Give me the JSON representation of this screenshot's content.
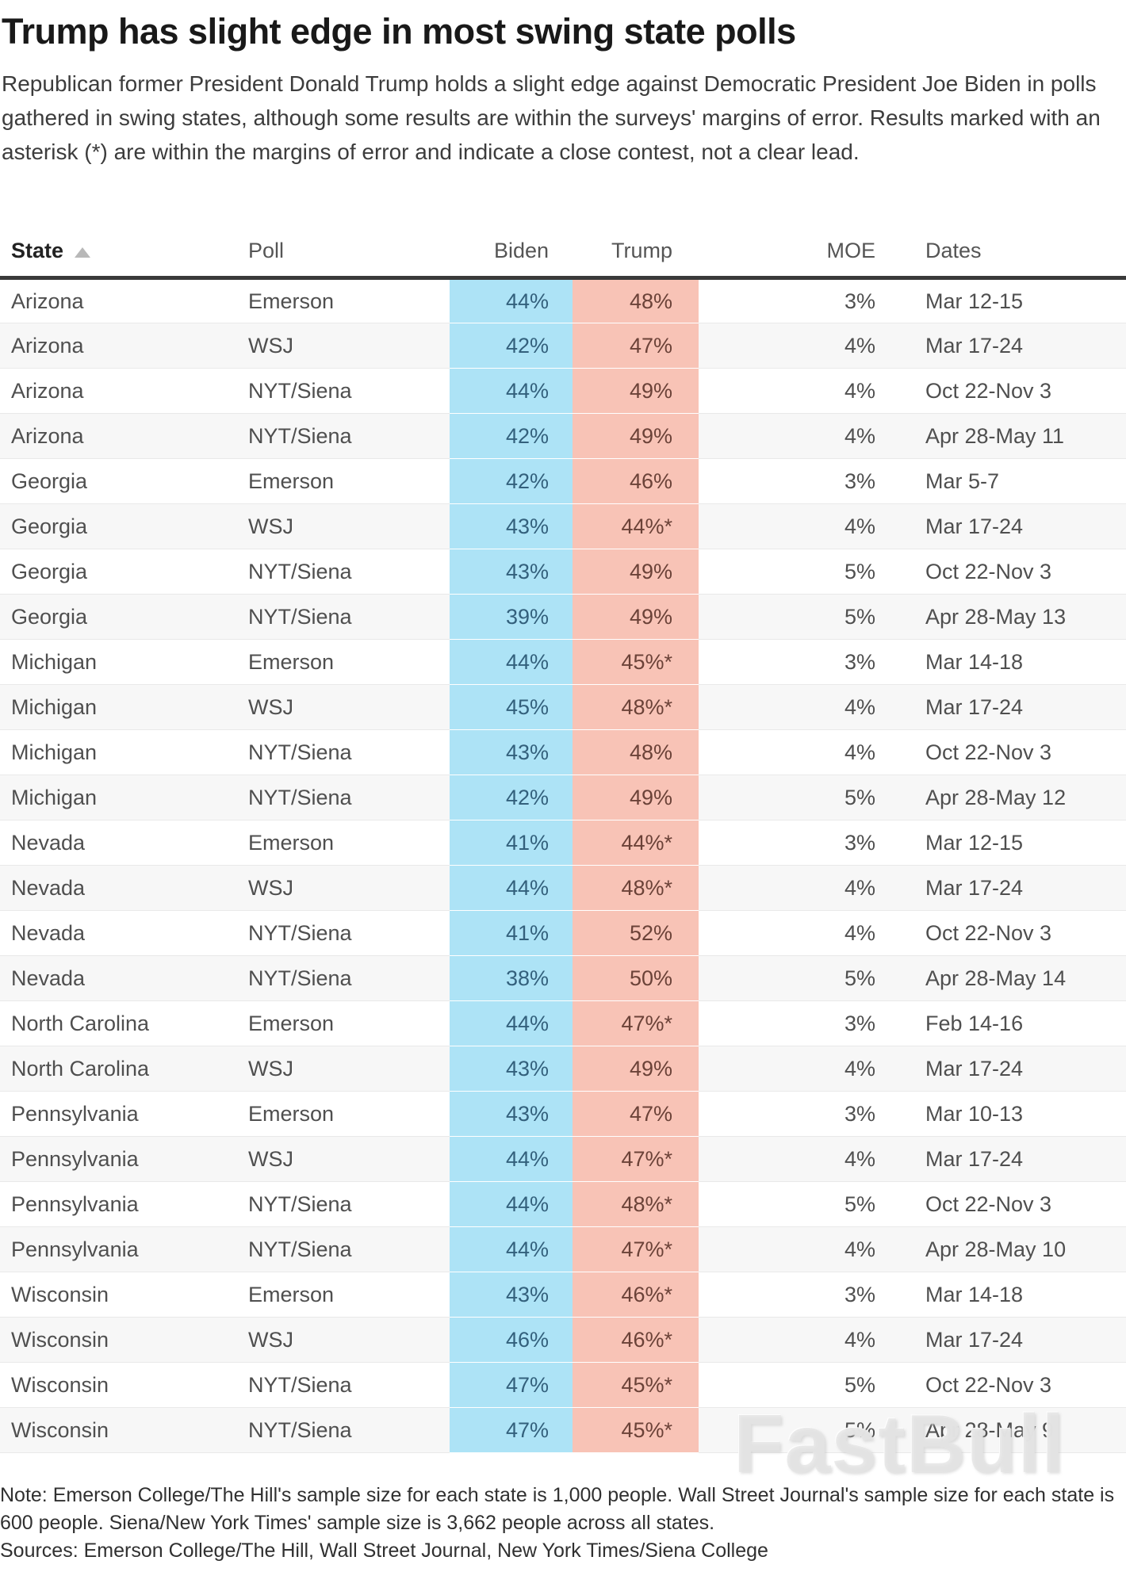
{
  "header": {
    "title": "Trump has slight edge in most swing state polls",
    "subtitle": "Republican former President Donald Trump holds a slight edge against Democratic President Joe Biden in polls gathered in swing states, although some results are within the surveys' margins of error. Results marked with an asterisk (*) are within the margins of error and indicate a close contest, not a clear lead."
  },
  "table": {
    "columns": [
      "State",
      "Poll",
      "Biden",
      "Trump",
      "MOE",
      "Dates"
    ],
    "sort": {
      "column": "State",
      "direction": "ascending",
      "icon": "sort-ascending-triangle"
    },
    "rows": [
      [
        "Arizona",
        "Emerson",
        "44%",
        "48%",
        "3%",
        "Mar 12-15"
      ],
      [
        "Arizona",
        "WSJ",
        "42%",
        "47%",
        "4%",
        "Mar 17-24"
      ],
      [
        "Arizona",
        "NYT/Siena",
        "44%",
        "49%",
        "4%",
        "Oct 22-Nov 3"
      ],
      [
        "Arizona",
        "NYT/Siena",
        "42%",
        "49%",
        "4%",
        "Apr 28-May 11"
      ],
      [
        "Georgia",
        "Emerson",
        "42%",
        "46%",
        "3%",
        "Mar 5-7"
      ],
      [
        "Georgia",
        "WSJ",
        "43%",
        "44%*",
        "4%",
        "Mar 17-24"
      ],
      [
        "Georgia",
        "NYT/Siena",
        "43%",
        "49%",
        "5%",
        "Oct 22-Nov 3"
      ],
      [
        "Georgia",
        "NYT/Siena",
        "39%",
        "49%",
        "5%",
        "Apr 28-May 13"
      ],
      [
        "Michigan",
        "Emerson",
        "44%",
        "45%*",
        "3%",
        "Mar 14-18"
      ],
      [
        "Michigan",
        "WSJ",
        "45%",
        "48%*",
        "4%",
        "Mar 17-24"
      ],
      [
        "Michigan",
        "NYT/Siena",
        "43%",
        "48%",
        "4%",
        "Oct 22-Nov 3"
      ],
      [
        "Michigan",
        "NYT/Siena",
        "42%",
        "49%",
        "5%",
        "Apr 28-May 12"
      ],
      [
        "Nevada",
        "Emerson",
        "41%",
        "44%*",
        "3%",
        "Mar 12-15"
      ],
      [
        "Nevada",
        "WSJ",
        "44%",
        "48%*",
        "4%",
        "Mar 17-24"
      ],
      [
        "Nevada",
        "NYT/Siena",
        "41%",
        "52%",
        "4%",
        "Oct 22-Nov 3"
      ],
      [
        "Nevada",
        "NYT/Siena",
        "38%",
        "50%",
        "5%",
        "Apr 28-May 14"
      ],
      [
        "North Carolina",
        "Emerson",
        "44%",
        "47%*",
        "3%",
        "Feb 14-16"
      ],
      [
        "North Carolina",
        "WSJ",
        "43%",
        "49%",
        "4%",
        "Mar 17-24"
      ],
      [
        "Pennsylvania",
        "Emerson",
        "43%",
        "47%",
        "3%",
        "Mar 10-13"
      ],
      [
        "Pennsylvania",
        "WSJ",
        "44%",
        "47%*",
        "4%",
        "Mar 17-24"
      ],
      [
        "Pennsylvania",
        "NYT/Siena",
        "44%",
        "48%*",
        "5%",
        "Oct 22-Nov 3"
      ],
      [
        "Pennsylvania",
        "NYT/Siena",
        "44%",
        "47%*",
        "4%",
        "Apr 28-May 10"
      ],
      [
        "Wisconsin",
        "Emerson",
        "43%",
        "46%*",
        "3%",
        "Mar 14-18"
      ],
      [
        "Wisconsin",
        "WSJ",
        "46%",
        "46%*",
        "4%",
        "Mar 17-24"
      ],
      [
        "Wisconsin",
        "NYT/Siena",
        "47%",
        "45%*",
        "5%",
        "Oct 22-Nov 3"
      ],
      [
        "Wisconsin",
        "NYT/Siena",
        "47%",
        "45%*",
        "5%",
        "Apr 28-May 9"
      ]
    ]
  },
  "colors": {
    "biden_band": "#ade3f6",
    "trump_band": "#f8c3b6",
    "biden_text": "#33607c",
    "trump_text": "#6b4238"
  },
  "watermark": "FastBull",
  "footer": {
    "note": "Note: Emerson College/The Hill's sample size for each state is 1,000 people. Wall Street Journal's sample size for each state is 600 people. Siena/New York Times' sample size is 3,662 people across all states.",
    "sources": "Sources: Emerson College/The Hill, Wall Street Journal, New York Times/Siena College"
  },
  "chart_data": {
    "type": "table",
    "title": "Trump has slight edge in most swing state polls",
    "columns": [
      "State",
      "Poll",
      "Biden",
      "Trump",
      "MOE",
      "Dates"
    ],
    "asterisk_meaning": "result within the survey's margin of error (close contest, not a clear lead)",
    "rows": [
      {
        "state": "Arizona",
        "poll": "Emerson",
        "biden_pct": 44,
        "trump_pct": 48,
        "moe_pct": 3,
        "dates": "Mar 12-15",
        "within_moe": false
      },
      {
        "state": "Arizona",
        "poll": "WSJ",
        "biden_pct": 42,
        "trump_pct": 47,
        "moe_pct": 4,
        "dates": "Mar 17-24",
        "within_moe": false
      },
      {
        "state": "Arizona",
        "poll": "NYT/Siena",
        "biden_pct": 44,
        "trump_pct": 49,
        "moe_pct": 4,
        "dates": "Oct 22-Nov 3",
        "within_moe": false
      },
      {
        "state": "Arizona",
        "poll": "NYT/Siena",
        "biden_pct": 42,
        "trump_pct": 49,
        "moe_pct": 4,
        "dates": "Apr 28-May 11",
        "within_moe": false
      },
      {
        "state": "Georgia",
        "poll": "Emerson",
        "biden_pct": 42,
        "trump_pct": 46,
        "moe_pct": 3,
        "dates": "Mar 5-7",
        "within_moe": false
      },
      {
        "state": "Georgia",
        "poll": "WSJ",
        "biden_pct": 43,
        "trump_pct": 44,
        "moe_pct": 4,
        "dates": "Mar 17-24",
        "within_moe": true
      },
      {
        "state": "Georgia",
        "poll": "NYT/Siena",
        "biden_pct": 43,
        "trump_pct": 49,
        "moe_pct": 5,
        "dates": "Oct 22-Nov 3",
        "within_moe": false
      },
      {
        "state": "Georgia",
        "poll": "NYT/Siena",
        "biden_pct": 39,
        "trump_pct": 49,
        "moe_pct": 5,
        "dates": "Apr 28-May 13",
        "within_moe": false
      },
      {
        "state": "Michigan",
        "poll": "Emerson",
        "biden_pct": 44,
        "trump_pct": 45,
        "moe_pct": 3,
        "dates": "Mar 14-18",
        "within_moe": true
      },
      {
        "state": "Michigan",
        "poll": "WSJ",
        "biden_pct": 45,
        "trump_pct": 48,
        "moe_pct": 4,
        "dates": "Mar 17-24",
        "within_moe": true
      },
      {
        "state": "Michigan",
        "poll": "NYT/Siena",
        "biden_pct": 43,
        "trump_pct": 48,
        "moe_pct": 4,
        "dates": "Oct 22-Nov 3",
        "within_moe": false
      },
      {
        "state": "Michigan",
        "poll": "NYT/Siena",
        "biden_pct": 42,
        "trump_pct": 49,
        "moe_pct": 5,
        "dates": "Apr 28-May 12",
        "within_moe": false
      },
      {
        "state": "Nevada",
        "poll": "Emerson",
        "biden_pct": 41,
        "trump_pct": 44,
        "moe_pct": 3,
        "dates": "Mar 12-15",
        "within_moe": true
      },
      {
        "state": "Nevada",
        "poll": "WSJ",
        "biden_pct": 44,
        "trump_pct": 48,
        "moe_pct": 4,
        "dates": "Mar 17-24",
        "within_moe": true
      },
      {
        "state": "Nevada",
        "poll": "NYT/Siena",
        "biden_pct": 41,
        "trump_pct": 52,
        "moe_pct": 4,
        "dates": "Oct 22-Nov 3",
        "within_moe": false
      },
      {
        "state": "Nevada",
        "poll": "NYT/Siena",
        "biden_pct": 38,
        "trump_pct": 50,
        "moe_pct": 5,
        "dates": "Apr 28-May 14",
        "within_moe": false
      },
      {
        "state": "North Carolina",
        "poll": "Emerson",
        "biden_pct": 44,
        "trump_pct": 47,
        "moe_pct": 3,
        "dates": "Feb 14-16",
        "within_moe": true
      },
      {
        "state": "North Carolina",
        "poll": "WSJ",
        "biden_pct": 43,
        "trump_pct": 49,
        "moe_pct": 4,
        "dates": "Mar 17-24",
        "within_moe": false
      },
      {
        "state": "Pennsylvania",
        "poll": "Emerson",
        "biden_pct": 43,
        "trump_pct": 47,
        "moe_pct": 3,
        "dates": "Mar 10-13",
        "within_moe": false
      },
      {
        "state": "Pennsylvania",
        "poll": "WSJ",
        "biden_pct": 44,
        "trump_pct": 47,
        "moe_pct": 4,
        "dates": "Mar 17-24",
        "within_moe": true
      },
      {
        "state": "Pennsylvania",
        "poll": "NYT/Siena",
        "biden_pct": 44,
        "trump_pct": 48,
        "moe_pct": 5,
        "dates": "Oct 22-Nov 3",
        "within_moe": true
      },
      {
        "state": "Pennsylvania",
        "poll": "NYT/Siena",
        "biden_pct": 44,
        "trump_pct": 47,
        "moe_pct": 4,
        "dates": "Apr 28-May 10",
        "within_moe": true
      },
      {
        "state": "Wisconsin",
        "poll": "Emerson",
        "biden_pct": 43,
        "trump_pct": 46,
        "moe_pct": 3,
        "dates": "Mar 14-18",
        "within_moe": true
      },
      {
        "state": "Wisconsin",
        "poll": "WSJ",
        "biden_pct": 46,
        "trump_pct": 46,
        "moe_pct": 4,
        "dates": "Mar 17-24",
        "within_moe": true
      },
      {
        "state": "Wisconsin",
        "poll": "NYT/Siena",
        "biden_pct": 47,
        "trump_pct": 45,
        "moe_pct": 5,
        "dates": "Oct 22-Nov 3",
        "within_moe": true
      },
      {
        "state": "Wisconsin",
        "poll": "NYT/Siena",
        "biden_pct": 47,
        "trump_pct": 45,
        "moe_pct": 5,
        "dates": "Apr 28-May 9",
        "within_moe": true
      }
    ]
  }
}
